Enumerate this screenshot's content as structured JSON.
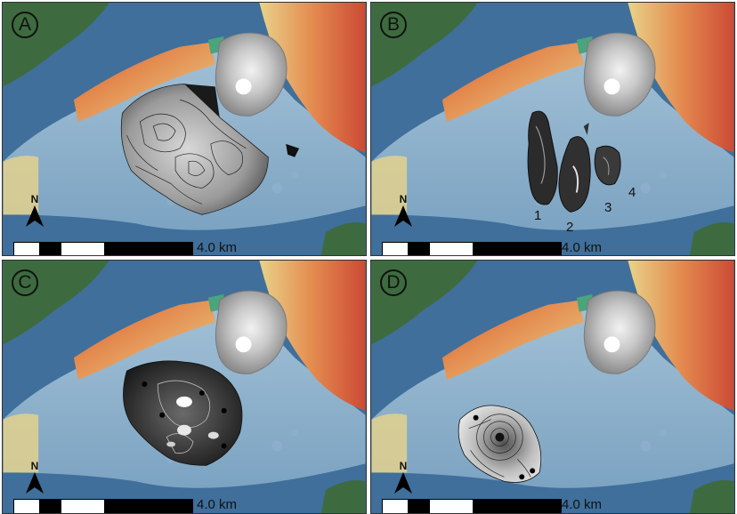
{
  "panels": [
    {
      "letter": "A",
      "scale_label": "4.0 km",
      "north_label": "N"
    },
    {
      "letter": "B",
      "scale_label": "4.0 km",
      "north_label": "N",
      "zone_labels": [
        "1",
        "2",
        "3",
        "4"
      ]
    },
    {
      "letter": "C",
      "scale_label": "4.0 km",
      "north_label": "N"
    },
    {
      "letter": "D",
      "scale_label": "4.0 km",
      "north_label": "N"
    }
  ],
  "colors": {
    "deep_sea": "#3f6f9a",
    "shallow_sea": "#8fb3cf",
    "land_green": "#3d6b3f",
    "volcano_grey": "#bfbfbf",
    "relief_red": "#d2553a",
    "relief_yellow": "#e8d38a"
  }
}
